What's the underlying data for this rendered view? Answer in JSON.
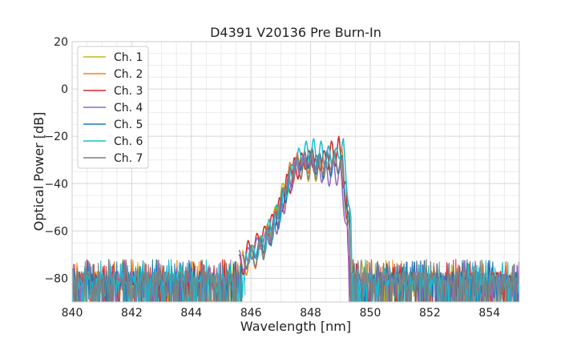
{
  "chart_data": {
    "type": "line",
    "title": "D4391 V20136 Pre Burn-In",
    "xlabel": "Wavelength [nm]",
    "ylabel": "Optical Power [dB]",
    "xlim": [
      840,
      855
    ],
    "ylim": [
      -90,
      20
    ],
    "xticks": [
      840,
      842,
      844,
      846,
      848,
      850,
      852,
      854
    ],
    "yticks": [
      20,
      0,
      -20,
      -40,
      -60,
      -80
    ],
    "xtick_labels": [
      "840",
      "842",
      "844",
      "846",
      "848",
      "850",
      "852",
      "854"
    ],
    "ytick_labels": [
      "20",
      "0",
      "−20",
      "−40",
      "−60",
      "−80"
    ],
    "grid": true,
    "legend_position": "upper-left",
    "noise_floor_db": -80,
    "series": [
      {
        "name": "Ch. 1",
        "color": "#bcbd22",
        "points": [
          [
            845.7,
            -68
          ],
          [
            846.0,
            -66
          ],
          [
            846.3,
            -62
          ],
          [
            846.55,
            -57
          ],
          [
            846.8,
            -50
          ],
          [
            847.05,
            -40
          ],
          [
            847.3,
            -32
          ],
          [
            847.55,
            -28
          ],
          [
            847.8,
            -27
          ],
          [
            848.05,
            -28
          ],
          [
            848.3,
            -30
          ],
          [
            848.55,
            -31
          ],
          [
            848.8,
            -28
          ],
          [
            849.05,
            -29
          ],
          [
            849.3,
            -56
          ]
        ]
      },
      {
        "name": "Ch. 2",
        "color": "#ff7f0e",
        "points": [
          [
            845.7,
            -69
          ],
          [
            846.0,
            -66
          ],
          [
            846.3,
            -63
          ],
          [
            846.55,
            -58
          ],
          [
            846.8,
            -51
          ],
          [
            847.05,
            -42
          ],
          [
            847.3,
            -31
          ],
          [
            847.55,
            -27
          ],
          [
            847.8,
            -26
          ],
          [
            848.05,
            -25
          ],
          [
            848.3,
            -28
          ],
          [
            848.55,
            -27
          ],
          [
            848.8,
            -26
          ],
          [
            849.05,
            -25
          ],
          [
            849.3,
            -50
          ]
        ]
      },
      {
        "name": "Ch. 3",
        "color": "#d62728",
        "points": [
          [
            845.6,
            -70
          ],
          [
            845.9,
            -64
          ],
          [
            846.2,
            -61
          ],
          [
            846.45,
            -58
          ],
          [
            846.7,
            -53
          ],
          [
            846.95,
            -46
          ],
          [
            847.2,
            -36
          ],
          [
            847.45,
            -29
          ],
          [
            847.7,
            -27
          ],
          [
            847.95,
            -26
          ],
          [
            848.2,
            -28
          ],
          [
            848.45,
            -26
          ],
          [
            848.7,
            -22
          ],
          [
            848.95,
            -20
          ],
          [
            849.2,
            -40
          ],
          [
            849.3,
            -75
          ]
        ]
      },
      {
        "name": "Ch. 4",
        "color": "#9467bd",
        "points": [
          [
            845.6,
            -68
          ],
          [
            845.9,
            -67
          ],
          [
            846.2,
            -63
          ],
          [
            846.5,
            -60
          ],
          [
            846.75,
            -55
          ],
          [
            847.0,
            -46
          ],
          [
            847.25,
            -36
          ],
          [
            847.5,
            -29
          ],
          [
            847.75,
            -28
          ],
          [
            848.0,
            -27
          ],
          [
            848.25,
            -29
          ],
          [
            848.5,
            -30
          ],
          [
            848.75,
            -29
          ],
          [
            849.0,
            -31
          ],
          [
            849.25,
            -60
          ]
        ]
      },
      {
        "name": "Ch. 5",
        "color": "#1f77b4",
        "points": [
          [
            845.7,
            -70
          ],
          [
            846.0,
            -67
          ],
          [
            846.3,
            -63
          ],
          [
            846.55,
            -59
          ],
          [
            846.8,
            -52
          ],
          [
            847.05,
            -43
          ],
          [
            847.3,
            -33
          ],
          [
            847.55,
            -29
          ],
          [
            847.8,
            -27
          ],
          [
            848.05,
            -25
          ],
          [
            848.3,
            -27
          ],
          [
            848.55,
            -26
          ],
          [
            848.8,
            -27
          ],
          [
            849.05,
            -28
          ],
          [
            849.3,
            -55
          ]
        ]
      },
      {
        "name": "Ch. 6",
        "color": "#17becf",
        "points": [
          [
            845.8,
            -69
          ],
          [
            846.05,
            -66
          ],
          [
            846.35,
            -62
          ],
          [
            846.6,
            -55
          ],
          [
            846.85,
            -49
          ],
          [
            847.1,
            -43
          ],
          [
            847.35,
            -32
          ],
          [
            847.6,
            -25
          ],
          [
            847.85,
            -22
          ],
          [
            848.1,
            -21
          ],
          [
            848.35,
            -22
          ],
          [
            848.6,
            -24
          ],
          [
            848.85,
            -25
          ],
          [
            849.1,
            -21
          ],
          [
            849.35,
            -54
          ]
        ]
      },
      {
        "name": "Ch. 7",
        "color": "#7f7f7f",
        "points": [
          [
            845.7,
            -70
          ],
          [
            846.0,
            -66
          ],
          [
            846.3,
            -63
          ],
          [
            846.55,
            -58
          ],
          [
            846.8,
            -52
          ],
          [
            847.05,
            -42
          ],
          [
            847.3,
            -33
          ],
          [
            847.55,
            -29
          ],
          [
            847.8,
            -27
          ],
          [
            848.05,
            -26
          ],
          [
            848.3,
            -29
          ],
          [
            848.55,
            -28
          ],
          [
            848.8,
            -27
          ],
          [
            849.05,
            -29
          ],
          [
            849.3,
            -58
          ]
        ]
      }
    ]
  }
}
